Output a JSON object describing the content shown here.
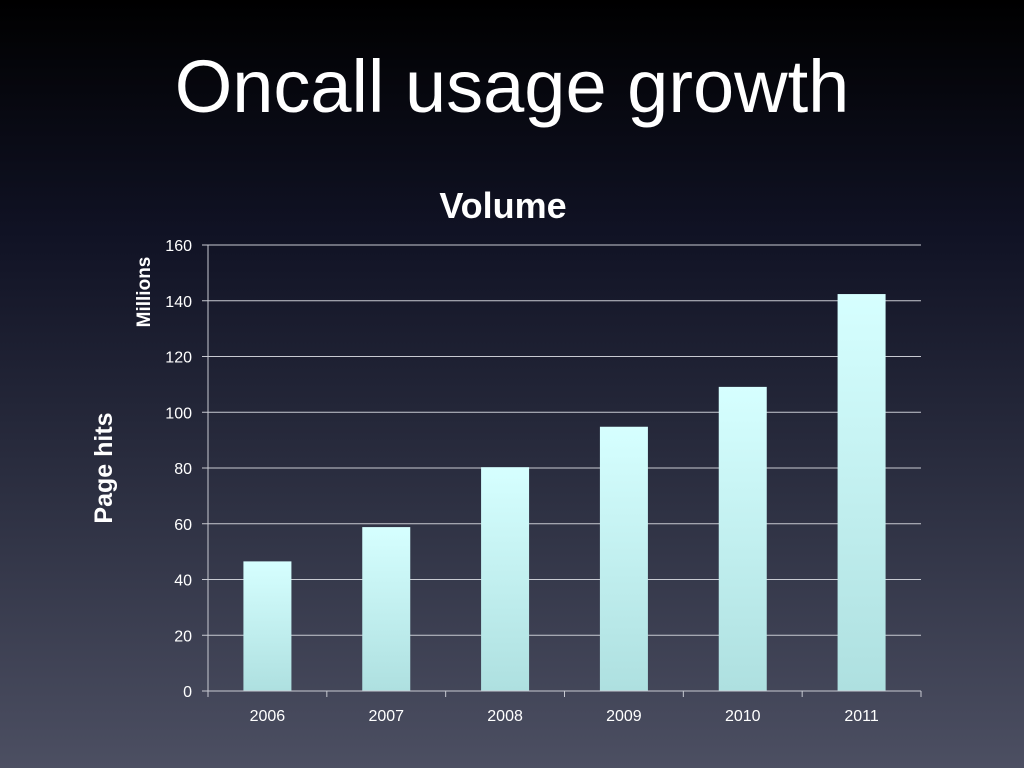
{
  "slide": {
    "title": "Oncall usage growth"
  },
  "colors": {
    "bar_top": "#d6ffff",
    "bar_bottom": "#aee0e0"
  },
  "chart_data": {
    "type": "bar",
    "title": "Volume",
    "ylabel": "Page hits",
    "yunit": "Millions",
    "xlabel": "",
    "categories": [
      "2006",
      "2007",
      "2008",
      "2009",
      "2010",
      "2011"
    ],
    "values": [
      46.5,
      58.8,
      80.3,
      94.8,
      109.1,
      142.4
    ],
    "ylim": [
      0,
      160
    ],
    "yticks": [
      0,
      20,
      40,
      60,
      80,
      100,
      120,
      140,
      160
    ],
    "grid": true,
    "legend": "none"
  }
}
